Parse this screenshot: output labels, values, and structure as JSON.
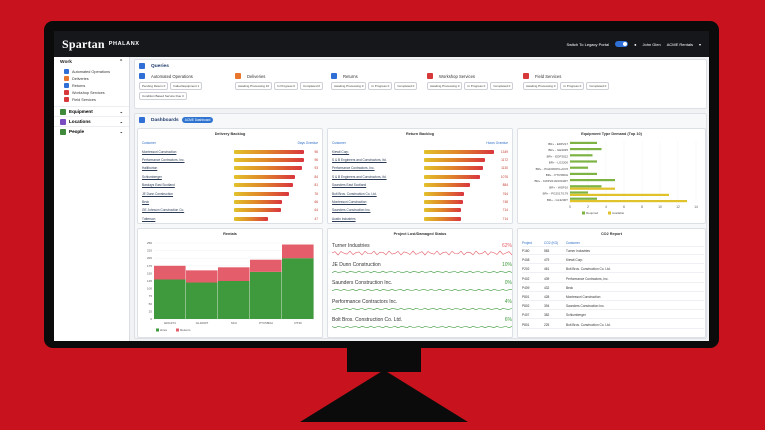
{
  "app": {
    "logo": "Spartan",
    "product": "PHALANX",
    "switch_label": "Switch To Legacy Portal",
    "user": "John Glen",
    "org": "ACME Rentals"
  },
  "sidebar": {
    "work_label": "Work",
    "items": [
      {
        "label": "Automated Operations",
        "color": "#2f6fd6"
      },
      {
        "label": "Deliveries",
        "color": "#e8762d"
      },
      {
        "label": "Returns",
        "color": "#2f6fd6"
      },
      {
        "label": "Workshop Services",
        "color": "#d7383a"
      },
      {
        "label": "Field Services",
        "color": "#d7383a"
      }
    ],
    "groups": [
      {
        "label": "Equipment",
        "color": "#3e8a3a"
      },
      {
        "label": "Locations",
        "color": "#7b4cc1"
      },
      {
        "label": "People",
        "color": "#3e8a3a"
      }
    ]
  },
  "queries": {
    "title": "Queries",
    "blocks": [
      {
        "title": "Automated Operations",
        "color": "#2f6fd6",
        "chips": [
          "Pending Return 0",
          "Failed Equipment 1",
          "Condition Based Service Due 3"
        ]
      },
      {
        "title": "Deliveries",
        "color": "#e8762d",
        "chips": [
          "Awaiting Processing 10",
          "In Progress 0",
          "Completed 0"
        ]
      },
      {
        "title": "Returns",
        "color": "#2f6fd6",
        "chips": [
          "Awaiting Processing 0",
          "In Progress 0",
          "Completed 0"
        ]
      },
      {
        "title": "Workshop Services",
        "color": "#d7383a",
        "chips": [
          "Awaiting Processing 0",
          "In Progress 0",
          "Completed 0"
        ]
      },
      {
        "title": "Field Services",
        "color": "#d7383a",
        "chips": [
          "Awaiting Processing 0",
          "In Progress 0",
          "Completed 0"
        ]
      }
    ]
  },
  "dashboards": {
    "title": "Dashboards",
    "badge": "ACME Dashboard"
  },
  "delivery_backlog": {
    "title": "Delivery Backlog",
    "col1": "Customer",
    "col2": "Days Overdue",
    "rows": [
      {
        "name": "Montessori Construction",
        "value": 96
      },
      {
        "name": "Performance Contractors, Inc.",
        "value": 96
      },
      {
        "name": "Halliburton",
        "value": 93
      },
      {
        "name": "Schlumberger",
        "value": 84
      },
      {
        "name": "Barclays East Scotland",
        "value": 81
      },
      {
        "name": "JE Dunn Construction",
        "value": 76
      },
      {
        "name": "Beck",
        "value": 66
      },
      {
        "name": "GE Johnson Construction Co.",
        "value": 64
      },
      {
        "name": "Tutterson",
        "value": 47
      }
    ]
  },
  "return_backlog": {
    "title": "Return Backlog",
    "col1": "Customer",
    "col2": "Hours Overdue",
    "rows": [
      {
        "name": "Kiewit Corp.",
        "value": 1349
      },
      {
        "name": "S & B Engineers and Constructors, ltd.",
        "value": 1172
      },
      {
        "name": "Performance Contractors, Inc.",
        "value": 1130
      },
      {
        "name": "S & B Engineers and Constructors, ltd.",
        "value": 1076
      },
      {
        "name": "Saunders East Scotland",
        "value": 884
      },
      {
        "name": "Bolt Bros. Construction Co. Ltd.",
        "value": 764
      },
      {
        "name": "Montessori Construction",
        "value": 748
      },
      {
        "name": "Saunders Construction Inc.",
        "value": 714
      },
      {
        "name": "Austin Industries",
        "value": 714
      }
    ]
  },
  "equipment_demand": {
    "title": "Equipment Type Demand (Top 10)",
    "chart_data": {
      "type": "bar",
      "orientation": "horizontal",
      "categories": [
        "BR+ - EDP217",
        "BR+ - GE3035",
        "BR+ - EDP3022",
        "BR+ - LG2200",
        "BR+ - PG2000/PG+KC5",
        "BR+ - PTC58DH",
        "BR+ - KWP2210/2301RT",
        "BR+ - WSP10",
        "BR+ - PG2017/179",
        "BR+ - GL3200T"
      ],
      "series": [
        {
          "name": "Required",
          "color": "#7cb342",
          "values": [
            3,
            3.5,
            2.5,
            3,
            2,
            3,
            5,
            3.5,
            2,
            3
          ]
        },
        {
          "name": "Available",
          "color": "#e0c22a",
          "values": [
            0,
            0,
            0,
            0,
            0,
            0,
            0,
            5,
            11,
            13
          ]
        }
      ],
      "xlim": [
        0,
        14
      ],
      "xticks": [
        "0",
        "2",
        "4",
        "6",
        "8",
        "10",
        "12",
        "14"
      ]
    }
  },
  "rentals": {
    "title": "Rentals",
    "chart_data": {
      "type": "bar",
      "stacked": true,
      "categories": [
        "EDG374",
        "GL3200T",
        "SKU",
        "PTC58DH",
        "DT30"
      ],
      "series": [
        {
          "name": "Hires",
          "color": "#3f9a3d",
          "values": [
            130,
            120,
            125,
            155,
            200
          ]
        },
        {
          "name": "Returns",
          "color": "#e35d6a",
          "values": [
            45,
            40,
            45,
            40,
            45
          ]
        }
      ],
      "ylim": [
        0,
        250
      ],
      "yticks": [
        "0",
        "25",
        "50",
        "75",
        "100",
        "125",
        "150",
        "175",
        "200",
        "225",
        "250"
      ]
    }
  },
  "project_risk": {
    "title": "Project Lost/Damaged Status",
    "rows": [
      {
        "name": "Turner Industries",
        "pct": "62%",
        "color": "#e35d6a"
      },
      {
        "name": "JE Dunn Construction",
        "pct": "10%",
        "color": "#3f9a3d"
      },
      {
        "name": "Saunders Construction Inc.",
        "pct": "0%",
        "color": "#3f9a3d"
      },
      {
        "name": "Performance Contractors Inc.",
        "pct": "4%",
        "color": "#3f9a3d"
      },
      {
        "name": "Bolt Bros. Construction Co. Ltd.",
        "pct": "6%",
        "color": "#3f9a3d"
      }
    ]
  },
  "co2": {
    "title": "CO2 Report",
    "headers": [
      "Project",
      "CO2 (KG)",
      "Customer"
    ],
    "rows": [
      [
        "P160",
        "583",
        "Turner Industries"
      ],
      [
        "P408",
        "479",
        "Kiewit Corp."
      ],
      [
        "P202",
        "461",
        "Bolt Bros. Construction Co. Ltd."
      ],
      [
        "P402",
        "439",
        "Performance Contractors, Inc."
      ],
      [
        "P409",
        "432",
        "Beck"
      ],
      [
        "P801",
        "428",
        "Montessori Construction"
      ],
      [
        "P802",
        "394",
        "Saunders Construction Inc."
      ],
      [
        "P407",
        "382",
        "Schlumberger"
      ],
      [
        "P801",
        "225",
        "Bolt Bros. Construction Co. Ltd."
      ]
    ]
  }
}
